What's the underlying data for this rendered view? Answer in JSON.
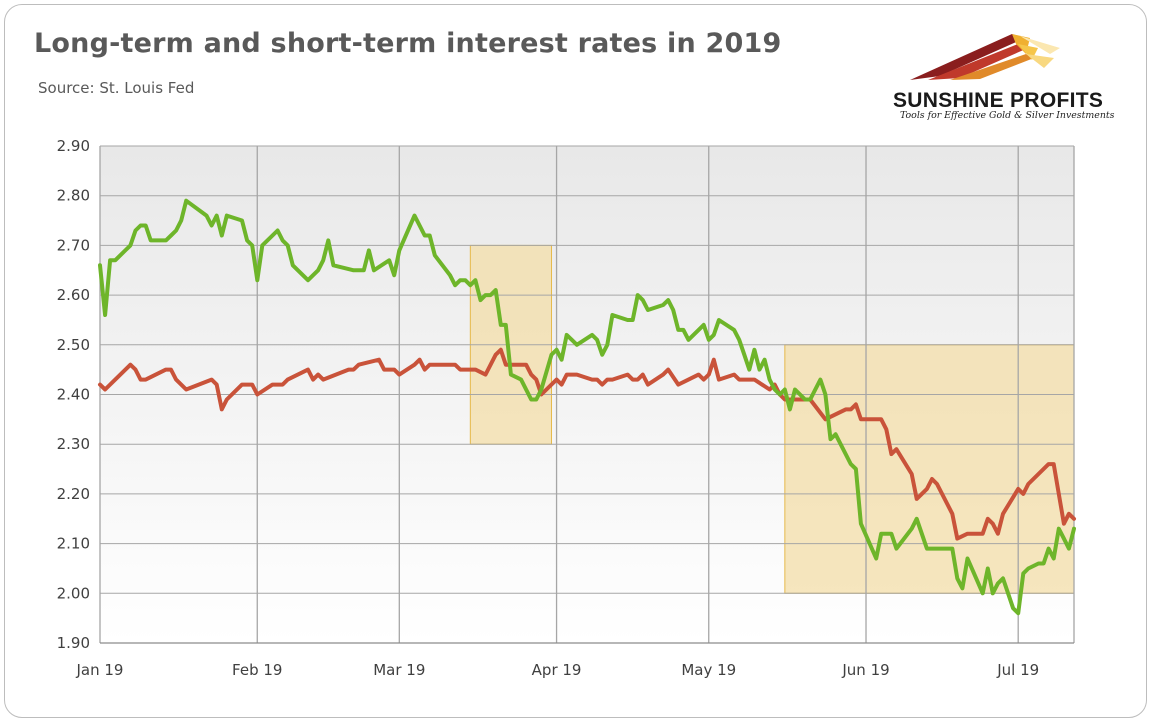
{
  "title": "Long-term and short-term interest rates in 2019",
  "source": "Source: St. Louis Fed",
  "logo": {
    "name": "SUNSHINE PROFITS",
    "tagline": "Tools for Effective Gold & Silver Investments"
  },
  "colors": {
    "long_term": "#6eb52a",
    "short_term": "#c9533a",
    "highlight_fill": "#f3dea8",
    "highlight_stroke": "#e6b94a",
    "grid": "#a6a6a6"
  },
  "chart_data": {
    "type": "line",
    "x_tick_labels": [
      "Jan 19",
      "Feb 19",
      "Mar 19",
      "Apr 19",
      "May 19",
      "Jun 19",
      "Jul 19"
    ],
    "x_range": [
      "2019-01-01",
      "2019-07-12"
    ],
    "ylim": [
      1.9,
      2.9
    ],
    "y_tick_labels": [
      "2.90",
      "2.80",
      "2.70",
      "2.60",
      "2.50",
      "2.40",
      "2.30",
      "2.20",
      "2.10",
      "2.00",
      "1.90"
    ],
    "grid": true,
    "highlights": [
      {
        "x_start": "2019-03-15",
        "x_end": "2019-03-31",
        "y_low": 2.3,
        "y_high": 2.7
      },
      {
        "x_start": "2019-05-16",
        "x_end": "2019-07-12",
        "y_low": 2.0,
        "y_high": 2.5
      }
    ],
    "series": [
      {
        "key": "long",
        "points": [
          [
            "2019-01-01",
            2.66
          ],
          [
            "2019-01-02",
            2.56
          ],
          [
            "2019-01-03",
            2.67
          ],
          [
            "2019-01-04",
            2.67
          ],
          [
            "2019-01-07",
            2.7
          ],
          [
            "2019-01-08",
            2.73
          ],
          [
            "2019-01-09",
            2.74
          ],
          [
            "2019-01-10",
            2.74
          ],
          [
            "2019-01-11",
            2.71
          ],
          [
            "2019-01-14",
            2.71
          ],
          [
            "2019-01-15",
            2.72
          ],
          [
            "2019-01-16",
            2.73
          ],
          [
            "2019-01-17",
            2.75
          ],
          [
            "2019-01-18",
            2.79
          ],
          [
            "2019-01-22",
            2.76
          ],
          [
            "2019-01-23",
            2.74
          ],
          [
            "2019-01-24",
            2.76
          ],
          [
            "2019-01-25",
            2.72
          ],
          [
            "2019-01-26",
            2.76
          ],
          [
            "2019-01-29",
            2.75
          ],
          [
            "2019-01-30",
            2.71
          ],
          [
            "2019-01-31",
            2.7
          ],
          [
            "2019-02-01",
            2.63
          ],
          [
            "2019-02-02",
            2.7
          ],
          [
            "2019-02-05",
            2.73
          ],
          [
            "2019-02-06",
            2.71
          ],
          [
            "2019-02-07",
            2.7
          ],
          [
            "2019-02-08",
            2.66
          ],
          [
            "2019-02-11",
            2.63
          ],
          [
            "2019-02-12",
            2.64
          ],
          [
            "2019-02-13",
            2.65
          ],
          [
            "2019-02-14",
            2.67
          ],
          [
            "2019-02-15",
            2.71
          ],
          [
            "2019-02-16",
            2.66
          ],
          [
            "2019-02-20",
            2.65
          ],
          [
            "2019-02-21",
            2.65
          ],
          [
            "2019-02-22",
            2.65
          ],
          [
            "2019-02-23",
            2.69
          ],
          [
            "2019-02-24",
            2.65
          ],
          [
            "2019-02-27",
            2.67
          ],
          [
            "2019-02-28",
            2.64
          ],
          [
            "2019-03-01",
            2.69
          ],
          [
            "2019-03-04",
            2.76
          ],
          [
            "2019-03-05",
            2.74
          ],
          [
            "2019-03-06",
            2.72
          ],
          [
            "2019-03-07",
            2.72
          ],
          [
            "2019-03-08",
            2.68
          ],
          [
            "2019-03-11",
            2.64
          ],
          [
            "2019-03-12",
            2.62
          ],
          [
            "2019-03-13",
            2.63
          ],
          [
            "2019-03-14",
            2.63
          ],
          [
            "2019-03-15",
            2.62
          ],
          [
            "2019-03-16",
            2.63
          ],
          [
            "2019-03-17",
            2.59
          ],
          [
            "2019-03-18",
            2.6
          ],
          [
            "2019-03-19",
            2.6
          ],
          [
            "2019-03-20",
            2.61
          ],
          [
            "2019-03-21",
            2.54
          ],
          [
            "2019-03-22",
            2.54
          ],
          [
            "2019-03-23",
            2.44
          ],
          [
            "2019-03-25",
            2.43
          ],
          [
            "2019-03-26",
            2.41
          ],
          [
            "2019-03-27",
            2.39
          ],
          [
            "2019-03-28",
            2.39
          ],
          [
            "2019-03-29",
            2.41
          ],
          [
            "2019-03-31",
            2.48
          ],
          [
            "2019-04-01",
            2.49
          ],
          [
            "2019-04-02",
            2.47
          ],
          [
            "2019-04-03",
            2.52
          ],
          [
            "2019-04-04",
            2.51
          ],
          [
            "2019-04-05",
            2.5
          ],
          [
            "2019-04-08",
            2.52
          ],
          [
            "2019-04-09",
            2.51
          ],
          [
            "2019-04-10",
            2.48
          ],
          [
            "2019-04-11",
            2.5
          ],
          [
            "2019-04-12",
            2.56
          ],
          [
            "2019-04-15",
            2.55
          ],
          [
            "2019-04-16",
            2.55
          ],
          [
            "2019-04-17",
            2.6
          ],
          [
            "2019-04-18",
            2.59
          ],
          [
            "2019-04-19",
            2.57
          ],
          [
            "2019-04-22",
            2.58
          ],
          [
            "2019-04-23",
            2.59
          ],
          [
            "2019-04-24",
            2.57
          ],
          [
            "2019-04-25",
            2.53
          ],
          [
            "2019-04-26",
            2.53
          ],
          [
            "2019-04-27",
            2.51
          ],
          [
            "2019-04-29",
            2.53
          ],
          [
            "2019-04-30",
            2.54
          ],
          [
            "2019-05-01",
            2.51
          ],
          [
            "2019-05-02",
            2.52
          ],
          [
            "2019-05-03",
            2.55
          ],
          [
            "2019-05-06",
            2.53
          ],
          [
            "2019-05-07",
            2.51
          ],
          [
            "2019-05-08",
            2.48
          ],
          [
            "2019-05-09",
            2.45
          ],
          [
            "2019-05-10",
            2.49
          ],
          [
            "2019-05-11",
            2.45
          ],
          [
            "2019-05-12",
            2.47
          ],
          [
            "2019-05-13",
            2.43
          ],
          [
            "2019-05-14",
            2.41
          ],
          [
            "2019-05-15",
            2.4
          ],
          [
            "2019-05-16",
            2.41
          ],
          [
            "2019-05-17",
            2.37
          ],
          [
            "2019-05-18",
            2.41
          ],
          [
            "2019-05-20",
            2.39
          ],
          [
            "2019-05-21",
            2.39
          ],
          [
            "2019-05-22",
            2.41
          ],
          [
            "2019-05-23",
            2.43
          ],
          [
            "2019-05-24",
            2.4
          ],
          [
            "2019-05-25",
            2.31
          ],
          [
            "2019-05-26",
            2.32
          ],
          [
            "2019-05-28",
            2.28
          ],
          [
            "2019-05-29",
            2.26
          ],
          [
            "2019-05-30",
            2.25
          ],
          [
            "2019-05-31",
            2.14
          ],
          [
            "2019-06-03",
            2.07
          ],
          [
            "2019-06-04",
            2.12
          ],
          [
            "2019-06-05",
            2.12
          ],
          [
            "2019-06-06",
            2.12
          ],
          [
            "2019-06-07",
            2.09
          ],
          [
            "2019-06-10",
            2.13
          ],
          [
            "2019-06-11",
            2.15
          ],
          [
            "2019-06-12",
            2.12
          ],
          [
            "2019-06-13",
            2.09
          ],
          [
            "2019-06-14",
            2.09
          ],
          [
            "2019-06-17",
            2.09
          ],
          [
            "2019-06-18",
            2.09
          ],
          [
            "2019-06-19",
            2.03
          ],
          [
            "2019-06-20",
            2.01
          ],
          [
            "2019-06-21",
            2.07
          ],
          [
            "2019-06-24",
            2.0
          ],
          [
            "2019-06-25",
            2.05
          ],
          [
            "2019-06-26",
            2.0
          ],
          [
            "2019-06-27",
            2.02
          ],
          [
            "2019-06-28",
            2.03
          ],
          [
            "2019-06-30",
            1.97
          ],
          [
            "2019-07-01",
            1.96
          ],
          [
            "2019-07-02",
            2.04
          ],
          [
            "2019-07-03",
            2.05
          ],
          [
            "2019-07-05",
            2.06
          ],
          [
            "2019-07-06",
            2.06
          ],
          [
            "2019-07-07",
            2.09
          ],
          [
            "2019-07-08",
            2.07
          ],
          [
            "2019-07-09",
            2.13
          ],
          [
            "2019-07-10",
            2.11
          ],
          [
            "2019-07-11",
            2.09
          ],
          [
            "2019-07-12",
            2.13
          ]
        ]
      },
      {
        "key": "short",
        "points": [
          [
            "2019-01-01",
            2.42
          ],
          [
            "2019-01-02",
            2.41
          ],
          [
            "2019-01-07",
            2.46
          ],
          [
            "2019-01-08",
            2.45
          ],
          [
            "2019-01-09",
            2.43
          ],
          [
            "2019-01-10",
            2.43
          ],
          [
            "2019-01-14",
            2.45
          ],
          [
            "2019-01-15",
            2.45
          ],
          [
            "2019-01-16",
            2.43
          ],
          [
            "2019-01-18",
            2.41
          ],
          [
            "2019-01-23",
            2.43
          ],
          [
            "2019-01-24",
            2.42
          ],
          [
            "2019-01-25",
            2.37
          ],
          [
            "2019-01-26",
            2.39
          ],
          [
            "2019-01-29",
            2.42
          ],
          [
            "2019-01-31",
            2.42
          ],
          [
            "2019-02-01",
            2.4
          ],
          [
            "2019-02-04",
            2.42
          ],
          [
            "2019-02-06",
            2.42
          ],
          [
            "2019-02-07",
            2.43
          ],
          [
            "2019-02-11",
            2.45
          ],
          [
            "2019-02-12",
            2.43
          ],
          [
            "2019-02-13",
            2.44
          ],
          [
            "2019-02-14",
            2.43
          ],
          [
            "2019-02-19",
            2.45
          ],
          [
            "2019-02-20",
            2.45
          ],
          [
            "2019-02-21",
            2.46
          ],
          [
            "2019-02-25",
            2.47
          ],
          [
            "2019-02-26",
            2.45
          ],
          [
            "2019-02-28",
            2.45
          ],
          [
            "2019-03-01",
            2.44
          ],
          [
            "2019-03-04",
            2.46
          ],
          [
            "2019-03-05",
            2.47
          ],
          [
            "2019-03-06",
            2.45
          ],
          [
            "2019-03-07",
            2.46
          ],
          [
            "2019-03-12",
            2.46
          ],
          [
            "2019-03-13",
            2.45
          ],
          [
            "2019-03-16",
            2.45
          ],
          [
            "2019-03-18",
            2.44
          ],
          [
            "2019-03-20",
            2.48
          ],
          [
            "2019-03-21",
            2.49
          ],
          [
            "2019-03-22",
            2.46
          ],
          [
            "2019-03-26",
            2.46
          ],
          [
            "2019-03-27",
            2.44
          ],
          [
            "2019-03-28",
            2.43
          ],
          [
            "2019-03-29",
            2.4
          ],
          [
            "2019-04-01",
            2.43
          ],
          [
            "2019-04-02",
            2.42
          ],
          [
            "2019-04-03",
            2.44
          ],
          [
            "2019-04-05",
            2.44
          ],
          [
            "2019-04-08",
            2.43
          ],
          [
            "2019-04-09",
            2.43
          ],
          [
            "2019-04-10",
            2.42
          ],
          [
            "2019-04-11",
            2.43
          ],
          [
            "2019-04-12",
            2.43
          ],
          [
            "2019-04-15",
            2.44
          ],
          [
            "2019-04-16",
            2.43
          ],
          [
            "2019-04-17",
            2.43
          ],
          [
            "2019-04-18",
            2.44
          ],
          [
            "2019-04-19",
            2.42
          ],
          [
            "2019-04-22",
            2.44
          ],
          [
            "2019-04-23",
            2.45
          ],
          [
            "2019-04-25",
            2.42
          ],
          [
            "2019-04-29",
            2.44
          ],
          [
            "2019-04-30",
            2.43
          ],
          [
            "2019-05-01",
            2.44
          ],
          [
            "2019-05-02",
            2.47
          ],
          [
            "2019-05-03",
            2.43
          ],
          [
            "2019-05-06",
            2.44
          ],
          [
            "2019-05-07",
            2.43
          ],
          [
            "2019-05-10",
            2.43
          ],
          [
            "2019-05-13",
            2.41
          ],
          [
            "2019-05-14",
            2.42
          ],
          [
            "2019-05-15",
            2.4
          ],
          [
            "2019-05-16",
            2.39
          ],
          [
            "2019-05-20",
            2.39
          ],
          [
            "2019-05-21",
            2.39
          ],
          [
            "2019-05-24",
            2.35
          ],
          [
            "2019-05-28",
            2.37
          ],
          [
            "2019-05-29",
            2.37
          ],
          [
            "2019-05-30",
            2.38
          ],
          [
            "2019-05-31",
            2.35
          ],
          [
            "2019-06-03",
            2.35
          ],
          [
            "2019-06-04",
            2.35
          ],
          [
            "2019-06-05",
            2.33
          ],
          [
            "2019-06-06",
            2.28
          ],
          [
            "2019-06-07",
            2.29
          ],
          [
            "2019-06-10",
            2.24
          ],
          [
            "2019-06-11",
            2.19
          ],
          [
            "2019-06-13",
            2.21
          ],
          [
            "2019-06-14",
            2.23
          ],
          [
            "2019-06-15",
            2.22
          ],
          [
            "2019-06-18",
            2.16
          ],
          [
            "2019-06-19",
            2.11
          ],
          [
            "2019-06-21",
            2.12
          ],
          [
            "2019-06-24",
            2.12
          ],
          [
            "2019-06-25",
            2.15
          ],
          [
            "2019-06-26",
            2.14
          ],
          [
            "2019-06-27",
            2.12
          ],
          [
            "2019-06-28",
            2.16
          ],
          [
            "2019-07-01",
            2.21
          ],
          [
            "2019-07-02",
            2.2
          ],
          [
            "2019-07-03",
            2.22
          ],
          [
            "2019-07-07",
            2.26
          ],
          [
            "2019-07-08",
            2.26
          ],
          [
            "2019-07-09",
            2.2
          ],
          [
            "2019-07-10",
            2.14
          ],
          [
            "2019-07-11",
            2.16
          ],
          [
            "2019-07-12",
            2.15
          ]
        ]
      }
    ]
  }
}
